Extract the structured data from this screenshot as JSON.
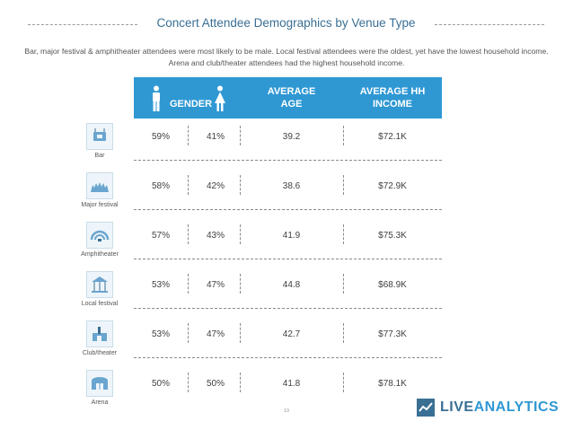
{
  "title": "Concert Attendee Demographics by Venue Type",
  "subtitle": "Bar, major festival & amphitheater attendees were most likely to be male. Local festival attendees were the oldest, yet have the lowest household income. Arena and club/theater attendees had the highest household income.",
  "header": {
    "gender": "GENDER",
    "age_line1": "AVERAGE",
    "age_line2": "AGE",
    "income_line1": "AVERAGE HH",
    "income_line2": "INCOME",
    "male_icon": "male-figure-icon",
    "female_icon": "female-figure-icon"
  },
  "colors": {
    "header_bg": "#2f98d3",
    "title": "#3a6f94",
    "logo_dark": "#3a6f94",
    "logo_light": "#2f98d3"
  },
  "rows": [
    {
      "venue": "Bar",
      "icon": "bar-sign-icon",
      "male": "59%",
      "female": "41%",
      "age": "39.2",
      "income": "$72.1K"
    },
    {
      "venue": "Major festival",
      "icon": "festival-crowd-icon",
      "male": "58%",
      "female": "42%",
      "age": "38.6",
      "income": "$72.9K"
    },
    {
      "venue": "Amphitheater",
      "icon": "amphitheater-icon",
      "male": "57%",
      "female": "43%",
      "age": "41.9",
      "income": "$75.3K"
    },
    {
      "venue": "Local festival",
      "icon": "carousel-icon",
      "male": "53%",
      "female": "47%",
      "age": "44.8",
      "income": "$68.9K"
    },
    {
      "venue": "Club/theater",
      "icon": "club-theater-icon",
      "male": "53%",
      "female": "47%",
      "age": "42.7",
      "income": "$77.3K"
    },
    {
      "venue": "Arena",
      "icon": "arena-icon",
      "male": "50%",
      "female": "50%",
      "age": "41.8",
      "income": "$78.1K"
    }
  ],
  "page_number": "19",
  "logo": {
    "part1": "LIVE",
    "part2": "ANALYTICS",
    "mark_icon": "liveanalytics-logo-icon"
  }
}
